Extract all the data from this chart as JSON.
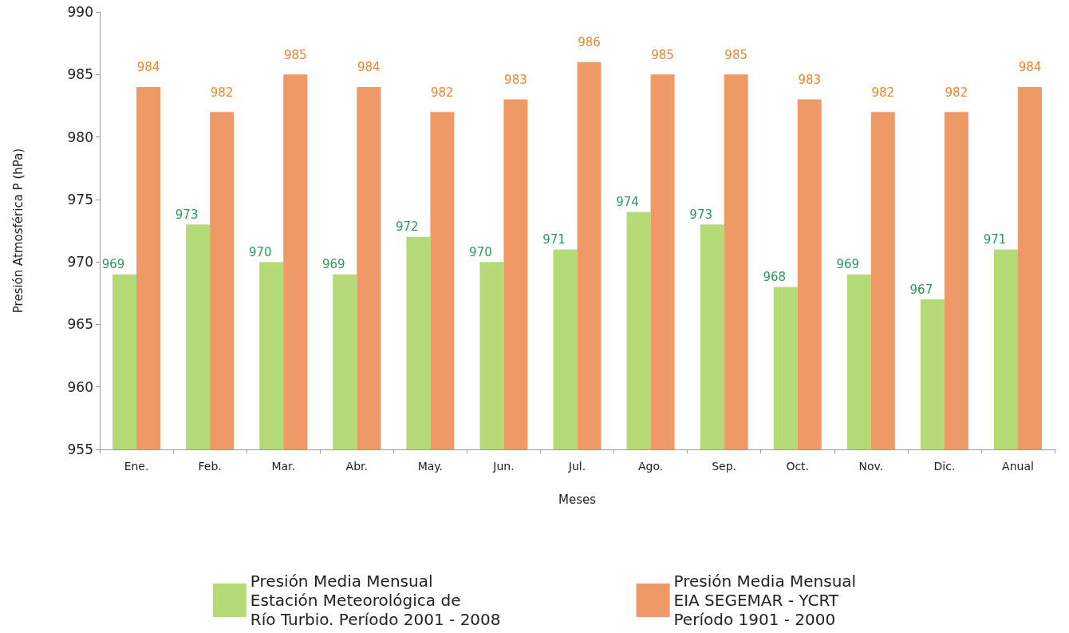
{
  "chart_data": {
    "type": "bar",
    "xlabel": "Meses",
    "ylabel": "Presión Atmosférica P (hPa)",
    "categories": [
      "Ene.",
      "Feb.",
      "Mar.",
      "Abr.",
      "May.",
      "Jun.",
      "Jul.",
      "Ago.",
      "Sep.",
      "Oct.",
      "Nov.",
      "Dic.",
      "Anual"
    ],
    "series": [
      {
        "name": "Presión Media Mensual\nEstación Meteorológica de\nRío Turbio. Período 2001 - 2008",
        "color": "#b5db78",
        "values": [
          969,
          973,
          970,
          969,
          972,
          970,
          971,
          974,
          973,
          968,
          969,
          967,
          971
        ]
      },
      {
        "name": "Presión Media Mensual\nEIA SEGEMAR - YCRT\nPeríodo 1901 - 2000",
        "color": "#ee9966",
        "values": [
          984,
          982,
          985,
          984,
          982,
          983,
          986,
          985,
          985,
          983,
          982,
          982,
          984
        ]
      }
    ],
    "ylim": [
      955,
      990
    ],
    "yticks": [
      955,
      960,
      965,
      970,
      975,
      980,
      985,
      990
    ],
    "data_labels": true,
    "grid": false,
    "legend": "bottom"
  }
}
